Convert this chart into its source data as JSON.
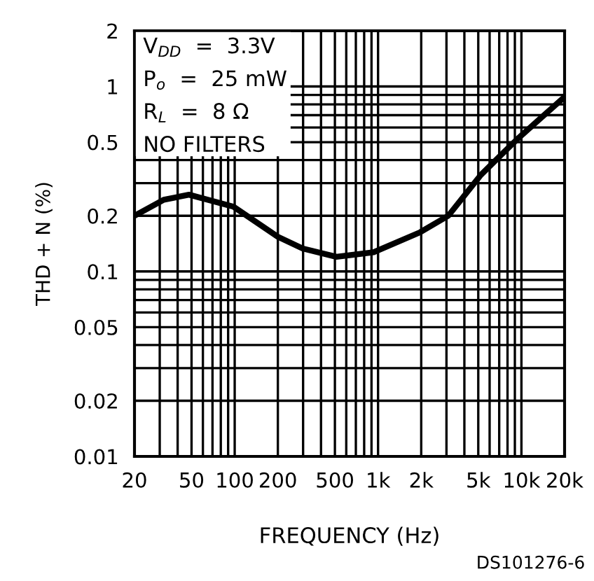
{
  "chart_data": {
    "type": "line",
    "xlabel": "FREQUENCY (Hz)",
    "ylabel": "THD + N (%)",
    "log": "xy",
    "grid": true,
    "legend": false,
    "marker": "none",
    "line_style": "solid",
    "x": [
      20,
      32,
      48,
      98,
      200,
      298,
      512,
      930,
      1970,
      3090,
      5220,
      7080,
      9550,
      19700
    ],
    "series": [
      {
        "color": "#000000",
        "values": [
          0.2,
          0.244,
          0.26,
          0.224,
          0.154,
          0.133,
          0.12,
          0.127,
          0.163,
          0.2,
          0.333,
          0.42,
          0.527,
          0.87
        ]
      }
    ],
    "xlim": [
      20,
      20000
    ],
    "ylim": [
      0.01,
      2
    ],
    "xticks": [
      20,
      {
        "value": 30,
        "label": null
      },
      {
        "value": 40,
        "label": null
      },
      50,
      {
        "value": 60,
        "label": null
      },
      {
        "value": 70,
        "label": null
      },
      {
        "value": 80,
        "label": null
      },
      {
        "value": 90,
        "label": null
      },
      100,
      200,
      {
        "value": 300,
        "label": null
      },
      {
        "value": 400,
        "label": null
      },
      500,
      {
        "value": 600,
        "label": null
      },
      {
        "value": 700,
        "label": null
      },
      {
        "value": 800,
        "label": null
      },
      {
        "value": 900,
        "label": null
      },
      {
        "value": 1000,
        "label": "1k"
      },
      {
        "value": 2000,
        "label": "2k"
      },
      {
        "value": 3000,
        "label": null
      },
      {
        "value": 4000,
        "label": null
      },
      {
        "value": 5000,
        "label": "5k"
      },
      {
        "value": 6000,
        "label": null
      },
      {
        "value": 7000,
        "label": null
      },
      {
        "value": 8000,
        "label": null
      },
      {
        "value": 9000,
        "label": null
      },
      {
        "value": 10000,
        "label": "10k"
      },
      {
        "value": 20000,
        "label": "20k"
      }
    ],
    "yticks": [
      0.01,
      0.02,
      {
        "value": 0.03,
        "label": null
      },
      {
        "value": 0.04,
        "label": null
      },
      0.05,
      {
        "value": 0.06,
        "label": null
      },
      {
        "value": 0.07,
        "label": null
      },
      {
        "value": 0.08,
        "label": null
      },
      {
        "value": 0.09,
        "label": null
      },
      0.1,
      0.2,
      {
        "value": 0.3,
        "label": null
      },
      {
        "value": 0.4,
        "label": null
      },
      0.5,
      {
        "value": 0.6,
        "label": null
      },
      {
        "value": 0.7,
        "label": null
      },
      {
        "value": 0.8,
        "label": null
      },
      {
        "value": 0.9,
        "label": null
      },
      1,
      2
    ],
    "annotations": [
      "V$_{DD}$  =  3.3V",
      "P$_{o}$  =  25 mW",
      "R$_{L}$  =  8 Ω",
      "NO FILTERS",
      "DS101276-6"
    ]
  }
}
